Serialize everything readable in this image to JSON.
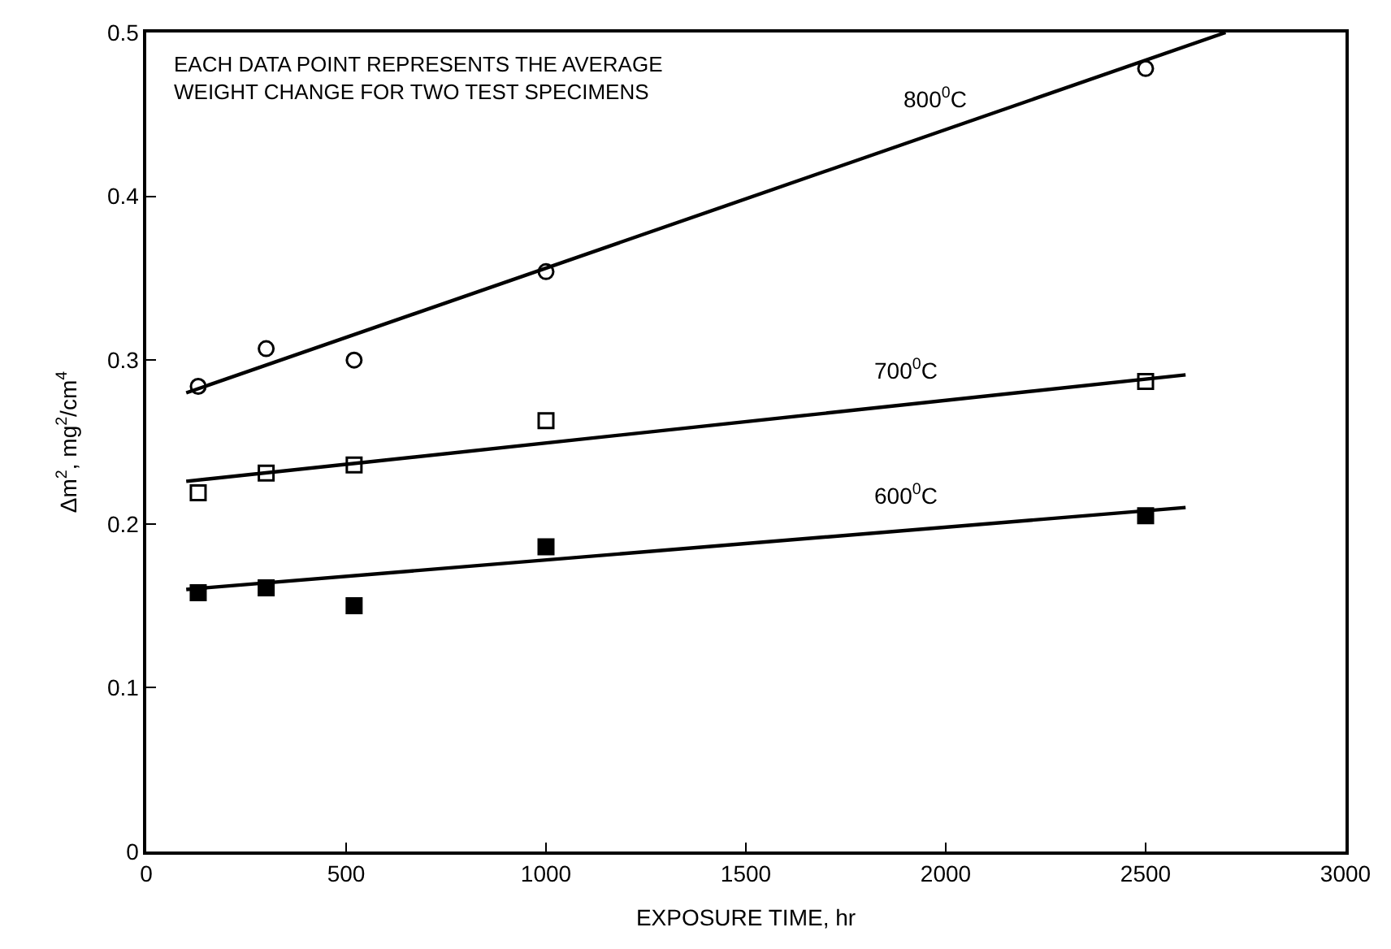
{
  "chart_data": {
    "type": "scatter",
    "xlabel": "EXPOSURE TIME, hr",
    "ylabel": "Δm$^{2}$, mg$^{2}$/cm$^{4}$",
    "xlim": [
      0,
      3000
    ],
    "xticks": [
      0,
      500,
      1000,
      1500,
      2000,
      2500,
      3000
    ],
    "ylim": [
      0,
      0.5
    ],
    "yticks": [
      0,
      0.1,
      0.2,
      0.3,
      0.4,
      0.5
    ],
    "legend": false,
    "series": [
      {
        "marker": "circle-open",
        "color": "#000000",
        "x": [
          130,
          300,
          520,
          1000,
          2500
        ],
        "values": [
          0.284,
          0.307,
          0.3,
          0.354,
          0.478
        ]
      },
      {
        "marker": "square-open",
        "color": "#000000",
        "x": [
          130,
          300,
          520,
          1000,
          2500
        ],
        "values": [
          0.219,
          0.231,
          0.236,
          0.263,
          0.287
        ]
      },
      {
        "marker": "square",
        "color": "#000000",
        "x": [
          130,
          300,
          520,
          1000,
          2500
        ],
        "values": [
          0.158,
          0.161,
          0.15,
          0.186,
          0.205
        ]
      },
      {
        "type": "line",
        "name": "800$^{0}$C",
        "marker": "none",
        "line_style": "solid",
        "color": "#000000",
        "x": [
          100,
          2700
        ],
        "values": [
          0.28,
          0.5
        ]
      },
      {
        "type": "line",
        "name": "700$^{0}$C",
        "marker": "none",
        "line_style": "solid",
        "color": "#000000",
        "x": [
          100,
          2600
        ],
        "values": [
          0.226,
          0.291
        ]
      },
      {
        "type": "line",
        "name": "600$^{0}$C",
        "marker": "none",
        "line_style": "solid",
        "color": "#000000",
        "x": [
          100,
          2600
        ],
        "values": [
          0.16,
          0.21
        ]
      }
    ],
    "annotations": [
      "EACH DATA POINT REPRESENTS THE AVERAGE\nWEIGHT CHANGE FOR TWO TEST SPECIMENS"
    ]
  }
}
